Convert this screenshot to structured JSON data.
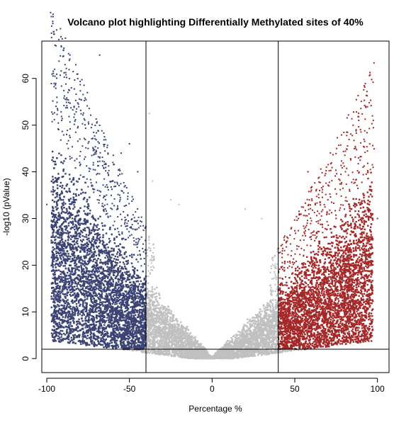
{
  "chart_data": {
    "type": "scatter",
    "title": "Volcano plot highlighting Differentially Methylated sites of 40%",
    "xlabel": "Percentage %",
    "ylabel": "-log10 (pValue)",
    "xlim": [
      -103,
      107
    ],
    "ylim": [
      -3,
      68
    ],
    "x_ticks": [
      -100,
      -50,
      0,
      50,
      100
    ],
    "y_ticks": [
      0,
      10,
      20,
      30,
      40,
      50,
      60
    ],
    "threshold_lines": {
      "vertical": [
        -40,
        40
      ],
      "horizontal": 2
    },
    "grid": false,
    "legend": "none",
    "series": [
      {
        "color": "#3a4373",
        "region": "Percentage < -40, -log10 (pValue) > 2",
        "outliers": [
          [
            -68,
            65
          ],
          [
            -100,
            33
          ],
          [
            -95,
            36
          ],
          [
            -88,
            48
          ],
          [
            -87,
            45
          ],
          [
            -80,
            47
          ],
          [
            -75,
            45
          ],
          [
            -68,
            43
          ],
          [
            -63,
            44
          ],
          [
            -60,
            42
          ],
          [
            -55,
            44
          ],
          [
            -50,
            46
          ],
          [
            -45,
            40
          ],
          [
            -60,
            38
          ],
          [
            -90,
            39
          ],
          [
            -82,
            38
          ],
          [
            -97,
            31
          ]
        ]
      },
      {
        "color": "#c0c0c0",
        "region": "-40 <= Percentage <= 40",
        "outliers": [
          [
            -38,
            52.5
          ],
          [
            -36,
            38
          ],
          [
            -25,
            34
          ],
          [
            -20,
            33
          ],
          [
            20,
            32
          ],
          [
            30,
            30
          ]
        ]
      },
      {
        "color": "#a52828",
        "region": "Percentage > 40, -log10 (pValue) > 2",
        "outliers": [
          [
            58,
            40
          ],
          [
            65,
            36
          ],
          [
            70,
            34
          ],
          [
            75,
            30
          ],
          [
            80,
            32
          ],
          [
            90,
            33
          ],
          [
            95,
            32
          ],
          [
            100,
            30
          ],
          [
            88,
            28
          ],
          [
            92,
            22
          ]
        ]
      }
    ]
  }
}
